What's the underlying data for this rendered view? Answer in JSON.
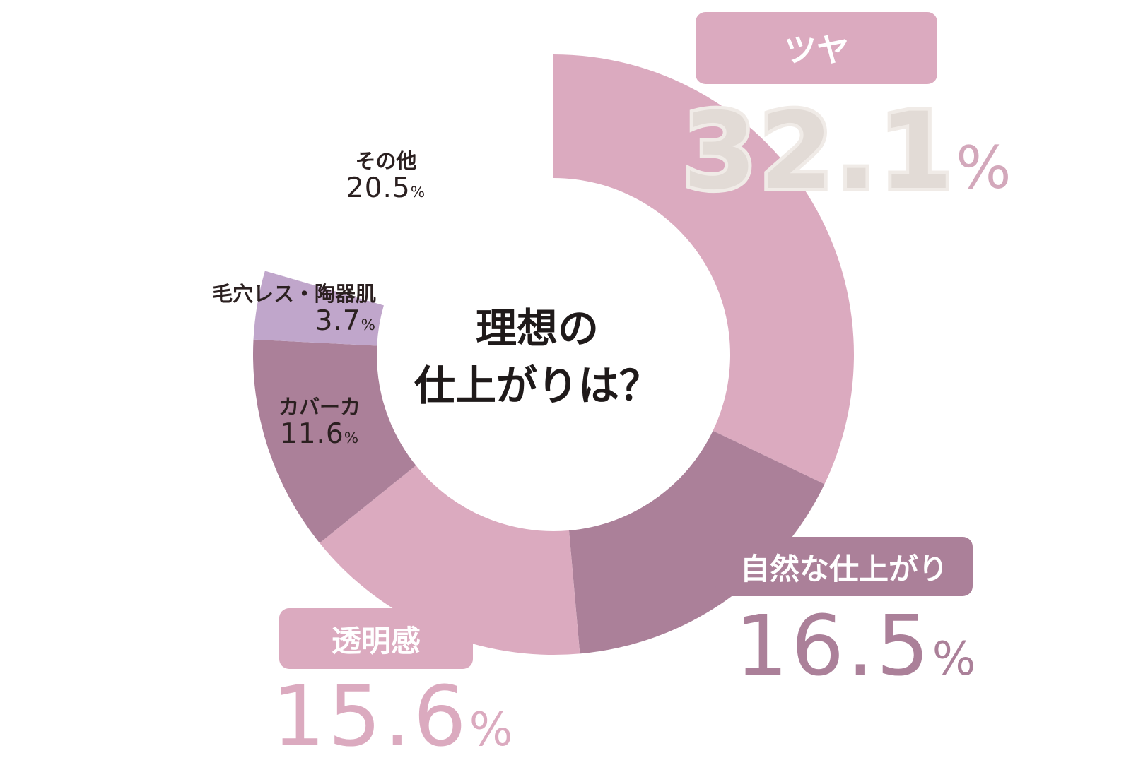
{
  "center": {
    "line1": "理想の",
    "line2": "仕上がりは？"
  },
  "chart_data": {
    "type": "pie",
    "categories": [
      "ツヤ",
      "自然な仕上がり",
      "透明感",
      "カバーカ",
      "毛穴レス・陶器肌",
      "その他"
    ],
    "values": [
      32.1,
      16.5,
      15.6,
      11.6,
      3.7,
      20.5
    ],
    "value_labels": [
      "32.1",
      "16.5",
      "15.6",
      "11.6",
      "3.7",
      "20.5"
    ],
    "unit": "%",
    "colors": [
      "#dbaabf",
      "#ab8099",
      "#dbaabf",
      "#ab8099",
      "#c0a6cb",
      "#ffffff"
    ],
    "start_angle_deg": 0,
    "direction": "clockwise"
  }
}
